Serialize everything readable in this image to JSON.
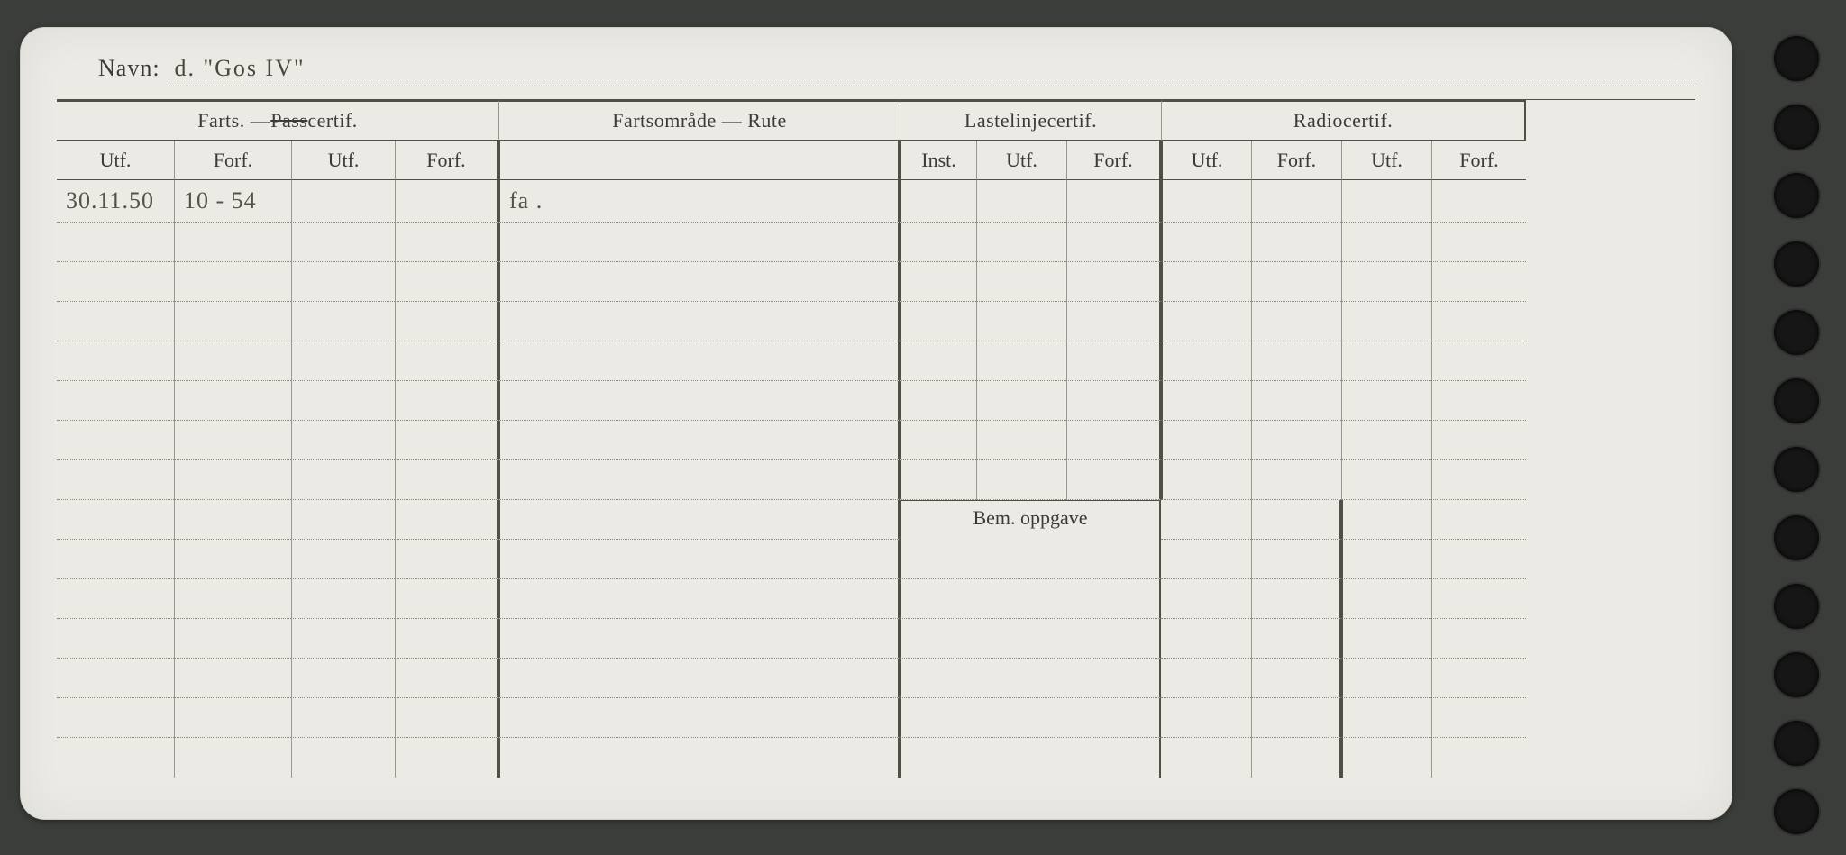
{
  "page": {
    "background_color": "#3a3d39",
    "card_color": "#eceae4",
    "text_color": "#3e3b36",
    "rule_color": "#524f47",
    "dotted_color": "#8a867b",
    "hole_color": "#151615",
    "hole_count": 12
  },
  "navn": {
    "label": "Navn:",
    "value": "d.  \"Gos  IV\""
  },
  "headers": {
    "farts_pass": {
      "text_pre": "Farts. — ",
      "text_strike": "Pass",
      "text_post": "certif."
    },
    "fartsomrade": "Fartsområde — Rute",
    "lastelinje": "Lastelinjecertif.",
    "radio": "Radiocertif.",
    "sub": {
      "utf": "Utf.",
      "forf": "Forf.",
      "inst": "Inst."
    },
    "bem": "Bem. oppgave"
  },
  "rows": [
    {
      "f_utf1": "30.11.50",
      "f_forf1": "10 - 54",
      "f_utf2": "",
      "f_forf2": "",
      "omrade": "fa .",
      "l_inst": "",
      "l_utf": "",
      "l_forf": "",
      "r_utf1": "",
      "r_forf1": "",
      "r_utf2": "",
      "r_forf2": ""
    },
    {
      "f_utf1": "",
      "f_forf1": "",
      "f_utf2": "",
      "f_forf2": "",
      "omrade": "",
      "l_inst": "",
      "l_utf": "",
      "l_forf": "",
      "r_utf1": "",
      "r_forf1": "",
      "r_utf2": "",
      "r_forf2": ""
    },
    {
      "f_utf1": "",
      "f_forf1": "",
      "f_utf2": "",
      "f_forf2": "",
      "omrade": "",
      "l_inst": "",
      "l_utf": "",
      "l_forf": "",
      "r_utf1": "",
      "r_forf1": "",
      "r_utf2": "",
      "r_forf2": ""
    },
    {
      "f_utf1": "",
      "f_forf1": "",
      "f_utf2": "",
      "f_forf2": "",
      "omrade": "",
      "l_inst": "",
      "l_utf": "",
      "l_forf": "",
      "r_utf1": "",
      "r_forf1": "",
      "r_utf2": "",
      "r_forf2": ""
    },
    {
      "f_utf1": "",
      "f_forf1": "",
      "f_utf2": "",
      "f_forf2": "",
      "omrade": "",
      "l_inst": "",
      "l_utf": "",
      "l_forf": "",
      "r_utf1": "",
      "r_forf1": "",
      "r_utf2": "",
      "r_forf2": ""
    },
    {
      "f_utf1": "",
      "f_forf1": "",
      "f_utf2": "",
      "f_forf2": "",
      "omrade": "",
      "l_inst": "",
      "l_utf": "",
      "l_forf": "",
      "r_utf1": "",
      "r_forf1": "",
      "r_utf2": "",
      "r_forf2": ""
    },
    {
      "f_utf1": "",
      "f_forf1": "",
      "f_utf2": "",
      "f_forf2": "",
      "omrade": "",
      "l_inst": "",
      "l_utf": "",
      "l_forf": "",
      "r_utf1": "",
      "r_forf1": "",
      "r_utf2": "",
      "r_forf2": ""
    },
    {
      "f_utf1": "",
      "f_forf1": "",
      "f_utf2": "",
      "f_forf2": "",
      "omrade": "",
      "l_inst": "",
      "l_utf": "",
      "l_forf": "",
      "r_utf1": "",
      "r_forf1": "",
      "r_utf2": "",
      "r_forf2": ""
    }
  ],
  "bem_start_row": 8,
  "bem_rows": [
    {
      "f_utf1": "",
      "f_forf1": "",
      "f_utf2": "",
      "f_forf2": "",
      "omrade": "",
      "r_utf1": "",
      "r_forf1": "",
      "r_utf2": "",
      "r_forf2": ""
    },
    {
      "f_utf1": "",
      "f_forf1": "",
      "f_utf2": "",
      "f_forf2": "",
      "omrade": "",
      "r_utf1": "",
      "r_forf1": "",
      "r_utf2": "",
      "r_forf2": ""
    },
    {
      "f_utf1": "",
      "f_forf1": "",
      "f_utf2": "",
      "f_forf2": "",
      "omrade": "",
      "r_utf1": "",
      "r_forf1": "",
      "r_utf2": "",
      "r_forf2": ""
    },
    {
      "f_utf1": "",
      "f_forf1": "",
      "f_utf2": "",
      "f_forf2": "",
      "omrade": "",
      "r_utf1": "",
      "r_forf1": "",
      "r_utf2": "",
      "r_forf2": ""
    },
    {
      "f_utf1": "",
      "f_forf1": "",
      "f_utf2": "",
      "f_forf2": "",
      "omrade": "",
      "r_utf1": "",
      "r_forf1": "",
      "r_utf2": "",
      "r_forf2": ""
    },
    {
      "f_utf1": "",
      "f_forf1": "",
      "f_utf2": "",
      "f_forf2": "",
      "omrade": "",
      "r_utf1": "",
      "r_forf1": "",
      "r_utf2": "",
      "r_forf2": ""
    }
  ]
}
